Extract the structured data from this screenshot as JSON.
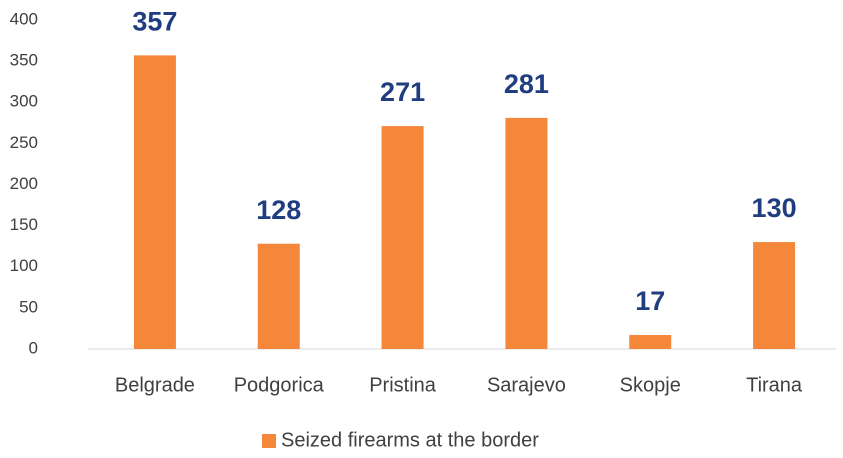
{
  "chart_data": {
    "type": "bar",
    "categories": [
      "Belgrade",
      "Podgorica",
      "Pristina",
      "Sarajevo",
      "Skopje",
      "Tirana"
    ],
    "series": [
      {
        "name": "Seized firearms at the border",
        "color": "#f5873b",
        "values": [
          357,
          128,
          271,
          281,
          17,
          130
        ]
      }
    ],
    "value_label_color": "#203d7f",
    "ylim": [
      0,
      400
    ],
    "yticks": [
      0,
      50,
      100,
      150,
      200,
      250,
      300,
      350,
      400
    ],
    "grid": false,
    "legend": "bottom"
  }
}
